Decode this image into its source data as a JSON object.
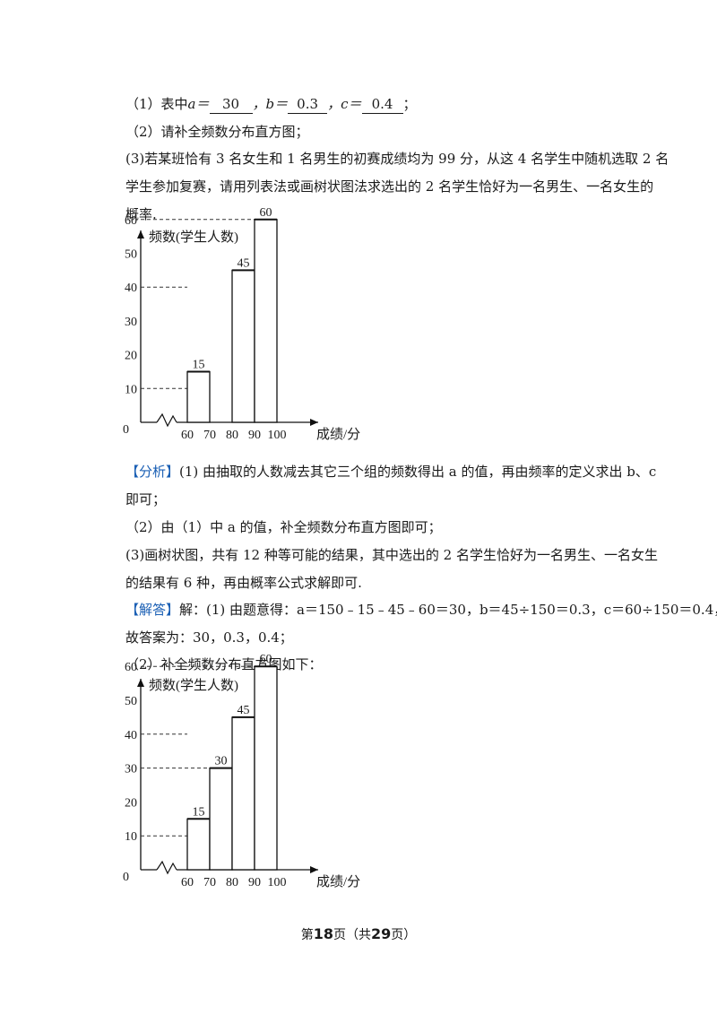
{
  "q1": {
    "prefix": "（1）表中",
    "a_label": "a＝",
    "a_val": "30",
    "b_label": "，b＝",
    "b_val": "0.3",
    "c_label": "，c＝",
    "c_val": "0.4",
    "end": "；"
  },
  "q2": "（2）请补全频数分布直方图；",
  "q3": [
    "(3)若某班恰有 3 名女生和 1 名男生的初赛成绩均为 99 分，从这 4 名学生中随机选取 2 名",
    "学生参加复赛，请用列表法或画树状图法求选出的 2 名学生恰好为一名男生、一名女生的",
    "概率."
  ],
  "chart_data": [
    {
      "type": "bar",
      "ylabel": "频数(学生人数)",
      "xlabel": "成绩/分",
      "x_ticks": [
        "60",
        "70",
        "80",
        "90",
        "100"
      ],
      "y_ticks": [
        "10",
        "20",
        "30",
        "40",
        "50",
        "60"
      ],
      "origin_label": "0",
      "categories": [
        "60-70",
        "70-80",
        "80-90",
        "90-100"
      ],
      "values": [
        15,
        null,
        45,
        60
      ],
      "value_labels": [
        "15",
        "",
        "45",
        "60"
      ],
      "dashed_levels": [
        10,
        40,
        60
      ]
    },
    {
      "type": "bar",
      "ylabel": "频数(学生人数)",
      "xlabel": "成绩/分",
      "x_ticks": [
        "60",
        "70",
        "80",
        "90",
        "100"
      ],
      "y_ticks": [
        "10",
        "20",
        "30",
        "40",
        "50",
        "60"
      ],
      "origin_label": "0",
      "categories": [
        "60-70",
        "70-80",
        "80-90",
        "90-100"
      ],
      "values": [
        15,
        30,
        45,
        60
      ],
      "value_labels": [
        "15",
        "30",
        "45",
        "60"
      ],
      "dashed_levels": [
        10,
        30,
        40,
        60
      ]
    }
  ],
  "analysis": {
    "tag": "【分析】",
    "l1": "(1) 由抽取的人数减去其它三个组的频数得出 a 的值，再由频率的定义求出 b、c",
    "l2": "即可；",
    "l3": "（2）由（1）中 a 的值，补全频数分布直方图即可；",
    "l4": "(3)画树状图，共有 12 种等可能的结果，其中选出的 2 名学生恰好为一名男生、一名女生",
    "l5": "的结果有 6 种，再由概率公式求解即可."
  },
  "answer": {
    "tag": "【解答】",
    "l1": "解：(1) 由题意得：a＝150﹣15﹣45﹣60＝30，b＝45÷150＝0.3，c＝60÷150＝0.4，",
    "l2": "故答案为：30，0.3，0.4；",
    "l3": "（2）补全频数分布直方图如下："
  },
  "footer": {
    "pre": "第",
    "page": "18",
    "mid": "页（共",
    "total": "29",
    "post": "页）"
  }
}
